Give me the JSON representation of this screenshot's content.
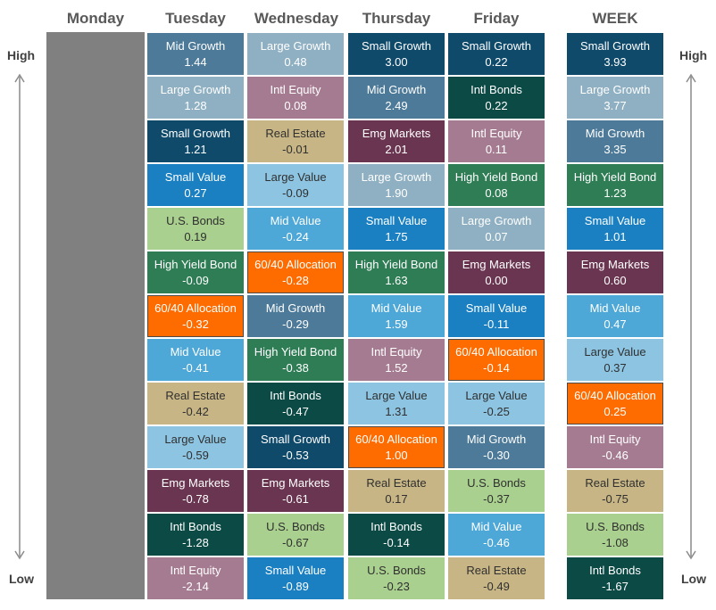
{
  "headers": {
    "monday": "Monday",
    "tuesday": "Tuesday",
    "wednesday": "Wednesday",
    "thursday": "Thursday",
    "friday": "Friday",
    "week": "WEEK"
  },
  "axis": {
    "high": "High",
    "low": "Low"
  },
  "colors": {
    "Small Growth": "#0f4a6b",
    "Mid Growth": "#4d7a98",
    "Large Growth": "#8fb0c2",
    "Small Value": "#1b80c1",
    "Mid Value": "#4da7d7",
    "Large Value": "#8cc4e2",
    "Intl Equity": "#a57b91",
    "Intl Bonds": "#0c4a45",
    "Emg Markets": "#6a3551",
    "High Yield Bond": "#2e7d55",
    "U.S. Bonds": "#a9d08e",
    "Real Estate": "#c7b585",
    "60/40 Allocation": "#fe6c00"
  },
  "chart_data": {
    "type": "table",
    "title": "",
    "columns": [
      "Tuesday",
      "Wednesday",
      "Thursday",
      "Friday",
      "WEEK"
    ],
    "days": [
      {
        "key": "tuesday",
        "cells": [
          {
            "label": "Mid Growth",
            "value": "1.44"
          },
          {
            "label": "Large Growth",
            "value": "1.28"
          },
          {
            "label": "Small Growth",
            "value": "1.21"
          },
          {
            "label": "Small Value",
            "value": "0.27"
          },
          {
            "label": "U.S. Bonds",
            "value": "0.19"
          },
          {
            "label": "High Yield Bond",
            "value": "-0.09"
          },
          {
            "label": "60/40 Allocation",
            "value": "-0.32"
          },
          {
            "label": "Mid Value",
            "value": "-0.41"
          },
          {
            "label": "Real Estate",
            "value": "-0.42"
          },
          {
            "label": "Large Value",
            "value": "-0.59"
          },
          {
            "label": "Emg Markets",
            "value": "-0.78"
          },
          {
            "label": "Intl Bonds",
            "value": "-1.28"
          },
          {
            "label": "Intl Equity",
            "value": "-2.14"
          }
        ]
      },
      {
        "key": "wednesday",
        "cells": [
          {
            "label": "Large Growth",
            "value": "0.48"
          },
          {
            "label": "Intl Equity",
            "value": "0.08"
          },
          {
            "label": "Real Estate",
            "value": "-0.01"
          },
          {
            "label": "Large Value",
            "value": "-0.09"
          },
          {
            "label": "Mid Value",
            "value": "-0.24"
          },
          {
            "label": "60/40 Allocation",
            "value": "-0.28"
          },
          {
            "label": "Mid Growth",
            "value": "-0.29"
          },
          {
            "label": "High Yield Bond",
            "value": "-0.38"
          },
          {
            "label": "Intl Bonds",
            "value": "-0.47"
          },
          {
            "label": "Small Growth",
            "value": "-0.53"
          },
          {
            "label": "Emg Markets",
            "value": "-0.61"
          },
          {
            "label": "U.S. Bonds",
            "value": "-0.67"
          },
          {
            "label": "Small Value",
            "value": "-0.89"
          }
        ]
      },
      {
        "key": "thursday",
        "cells": [
          {
            "label": "Small Growth",
            "value": "3.00"
          },
          {
            "label": "Mid Growth",
            "value": "2.49"
          },
          {
            "label": "Emg Markets",
            "value": "2.01"
          },
          {
            "label": "Large Growth",
            "value": "1.90"
          },
          {
            "label": "Small Value",
            "value": "1.75"
          },
          {
            "label": "High Yield Bond",
            "value": "1.63"
          },
          {
            "label": "Mid Value",
            "value": "1.59"
          },
          {
            "label": "Intl Equity",
            "value": "1.52"
          },
          {
            "label": "Large Value",
            "value": "1.31"
          },
          {
            "label": "60/40 Allocation",
            "value": "1.00"
          },
          {
            "label": "Real Estate",
            "value": "0.17"
          },
          {
            "label": "Intl Bonds",
            "value": "-0.14"
          },
          {
            "label": "U.S. Bonds",
            "value": "-0.23"
          }
        ]
      },
      {
        "key": "friday",
        "cells": [
          {
            "label": "Small Growth",
            "value": "0.22"
          },
          {
            "label": "Intl Bonds",
            "value": "0.22"
          },
          {
            "label": "Intl Equity",
            "value": "0.11"
          },
          {
            "label": "High Yield Bond",
            "value": "0.08"
          },
          {
            "label": "Large Growth",
            "value": "0.07"
          },
          {
            "label": "Emg Markets",
            "value": "0.00"
          },
          {
            "label": "Small Value",
            "value": "-0.11"
          },
          {
            "label": "60/40 Allocation",
            "value": "-0.14"
          },
          {
            "label": "Large Value",
            "value": "-0.25"
          },
          {
            "label": "Mid Growth",
            "value": "-0.30"
          },
          {
            "label": "U.S. Bonds",
            "value": "-0.37"
          },
          {
            "label": "Mid Value",
            "value": "-0.46"
          },
          {
            "label": "Real Estate",
            "value": "-0.49"
          }
        ]
      },
      {
        "key": "week",
        "cells": [
          {
            "label": "Small Growth",
            "value": "3.93"
          },
          {
            "label": "Large Growth",
            "value": "3.77"
          },
          {
            "label": "Mid Growth",
            "value": "3.35"
          },
          {
            "label": "High Yield Bond",
            "value": "1.23"
          },
          {
            "label": "Small Value",
            "value": "1.01"
          },
          {
            "label": "Emg Markets",
            "value": "0.60"
          },
          {
            "label": "Mid Value",
            "value": "0.47"
          },
          {
            "label": "Large Value",
            "value": "0.37"
          },
          {
            "label": "60/40 Allocation",
            "value": "0.25"
          },
          {
            "label": "Intl Equity",
            "value": "-0.46"
          },
          {
            "label": "Real Estate",
            "value": "-0.75"
          },
          {
            "label": "U.S. Bonds",
            "value": "-1.08"
          },
          {
            "label": "Intl Bonds",
            "value": "-1.67"
          }
        ]
      }
    ]
  }
}
